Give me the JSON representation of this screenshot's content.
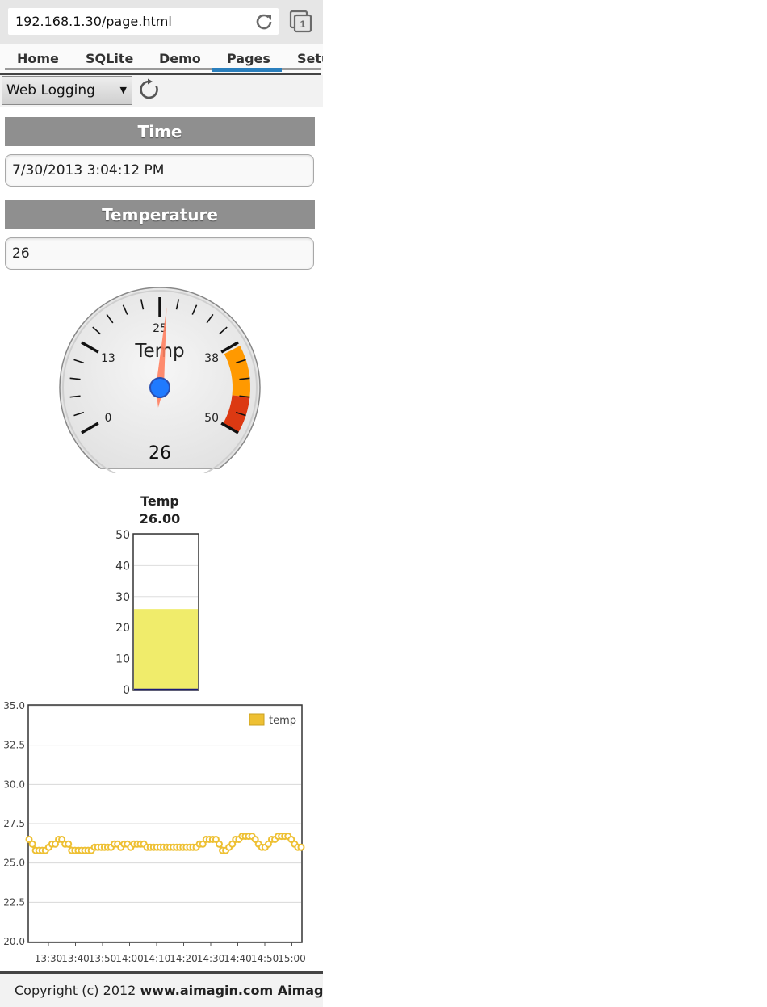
{
  "browser": {
    "url": "192.168.1.30/page.html",
    "tab_count": "1"
  },
  "nav": {
    "items": [
      "Home",
      "SQLite",
      "Demo",
      "Pages",
      "Setup"
    ],
    "active": "Pages"
  },
  "toolbar": {
    "select_value": "Web Logging"
  },
  "sections": {
    "time": {
      "title": "Time",
      "value": "7/30/2013 3:04:12 PM"
    },
    "temperature": {
      "title": "Temperature",
      "value": "26"
    }
  },
  "gauge": {
    "label": "Temp",
    "value": 26,
    "readout": "26",
    "min": 0,
    "max": 50,
    "tick_labels": [
      "0",
      "13",
      "25",
      "38",
      "50"
    ],
    "bands": [
      {
        "from": 38,
        "to": 45,
        "color": "#ff9900"
      },
      {
        "from": 45,
        "to": 50,
        "color": "#dc3912"
      }
    ]
  },
  "thermometer": {
    "title": "Temp",
    "value_label": "26.00",
    "value": 26,
    "ylim": [
      0,
      50
    ],
    "ticks": [
      "0",
      "10",
      "20",
      "30",
      "40",
      "50"
    ],
    "fill_color": "#f0ec6b"
  },
  "chart_data": {
    "type": "line",
    "series": [
      {
        "name": "temp",
        "color": "#eec033",
        "values": [
          26.5,
          26.2,
          25.8,
          25.8,
          25.8,
          25.8,
          26.0,
          26.2,
          26.2,
          26.5,
          26.5,
          26.2,
          26.2,
          25.8,
          25.8,
          25.8,
          25.8,
          25.8,
          25.8,
          25.8,
          26.0,
          26.0,
          26.0,
          26.0,
          26.0,
          26.0,
          26.2,
          26.2,
          26.0,
          26.2,
          26.2,
          26.0,
          26.2,
          26.2,
          26.2,
          26.2,
          26.0,
          26.0,
          26.0,
          26.0,
          26.0,
          26.0,
          26.0,
          26.0,
          26.0,
          26.0,
          26.0,
          26.0,
          26.0,
          26.0,
          26.0,
          26.0,
          26.2,
          26.2,
          26.5,
          26.5,
          26.5,
          26.5,
          26.2,
          25.8,
          25.8,
          26.0,
          26.2,
          26.5,
          26.5,
          26.7,
          26.7,
          26.7,
          26.7,
          26.5,
          26.2,
          26.0,
          26.0,
          26.2,
          26.5,
          26.5,
          26.7,
          26.7,
          26.7,
          26.7,
          26.5,
          26.2,
          26.0,
          26.0
        ]
      }
    ],
    "x_ticks": [
      "13:30",
      "13:40",
      "13:50",
      "14:00",
      "14:10",
      "14:20",
      "14:30",
      "14:40",
      "14:50",
      "15:00"
    ],
    "y_ticks": [
      "20.0",
      "22.5",
      "25.0",
      "27.5",
      "30.0",
      "32.5",
      "35.0"
    ],
    "ylim": [
      20,
      35
    ],
    "grid": true,
    "legend": "top-right"
  },
  "footer": {
    "prefix": "Copyright (c) 2012 ",
    "bold": "www.aimagin.com Aimagin Ltd."
  },
  "icons": {
    "reload": "reload-icon",
    "tabs": "tabs-icon",
    "refresh": "refresh-icon"
  }
}
